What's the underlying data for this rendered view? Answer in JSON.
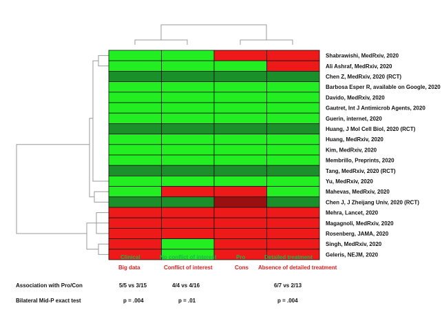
{
  "chart_data": {
    "type": "heatmap",
    "rows": [
      {
        "label": "Shabrawishi, MedRxiv, 2020",
        "cells": [
          "g",
          "g",
          "r",
          "r"
        ]
      },
      {
        "label": "Ali Ashraf, MedRxiv, 2020",
        "cells": [
          "g",
          "g",
          "g",
          "r"
        ]
      },
      {
        "label": "Chen Z, MedRxiv, 2020 (RCT)",
        "cells": [
          "gd",
          "gd",
          "gd",
          "gd"
        ]
      },
      {
        "label": "Barbosa Esper R, available on Google, 2020",
        "cells": [
          "g",
          "g",
          "g",
          "g"
        ]
      },
      {
        "label": "Davido, MedRxiv, 2020",
        "cells": [
          "g",
          "g",
          "g",
          "g"
        ]
      },
      {
        "label": "Gautret, Int J Antimicrob Agents, 2020",
        "cells": [
          "g",
          "g",
          "g",
          "g"
        ]
      },
      {
        "label": "Guerin, internet, 2020",
        "cells": [
          "g",
          "g",
          "g",
          "g"
        ]
      },
      {
        "label": "Huang, J Mol Cell Biol, 2020 (RCT)",
        "cells": [
          "gd",
          "gd",
          "gd",
          "gd"
        ]
      },
      {
        "label": "Huang, MedRxiv, 2020",
        "cells": [
          "g",
          "g",
          "g",
          "g"
        ]
      },
      {
        "label": "Kim, MedRxiv, 2020",
        "cells": [
          "g",
          "g",
          "g",
          "g"
        ]
      },
      {
        "label": "Membrillo, Preprints, 2020",
        "cells": [
          "g",
          "g",
          "g",
          "g"
        ]
      },
      {
        "label": "Tang, MedRxiv, 2020 (RCT)",
        "cells": [
          "gd",
          "gd",
          "gd",
          "gd"
        ]
      },
      {
        "label": "Yu, MedRxiv, 2020",
        "cells": [
          "g",
          "g",
          "g",
          "g"
        ]
      },
      {
        "label": "Mahevas, MedRxiv, 2020",
        "cells": [
          "g",
          "r",
          "r",
          "g"
        ]
      },
      {
        "label": "Chen J, J Zheijang Univ, 2020 (RCT)",
        "cells": [
          "gd",
          "gd",
          "rd",
          "gd"
        ]
      },
      {
        "label": "Mehra, Lancet, 2020",
        "cells": [
          "r",
          "r",
          "r",
          "r"
        ]
      },
      {
        "label": "Magagnoli, MedRxiv, 2020",
        "cells": [
          "r",
          "r",
          "r",
          "r"
        ]
      },
      {
        "label": "Rosenberg, JAMA, 2020",
        "cells": [
          "r",
          "r",
          "r",
          "r"
        ]
      },
      {
        "label": "Singh, MedRxiv, 2020",
        "cells": [
          "r",
          "g",
          "r",
          "r"
        ]
      },
      {
        "label": "Geleris, NEJM, 2020",
        "cells": [
          "r",
          "g",
          "r",
          "r"
        ]
      }
    ],
    "columns": [
      {
        "green_label": "Clinical",
        "red_label": "Big data"
      },
      {
        "green_label": "No conflict of interest",
        "red_label": "Conflict of interest"
      },
      {
        "green_label": "Pro",
        "red_label": "Cons"
      },
      {
        "green_label": "Detailed treatment",
        "red_label": "Absence of detailed treatment"
      }
    ],
    "colors": {
      "g": "#22ee22",
      "gd": "#1a8f2a",
      "r": "#ee1a1a",
      "rd": "#9a1010",
      "grid": "#111111"
    },
    "stats": {
      "association": {
        "label": "Association with Pro/Con",
        "values": [
          "5/5 vs 3/15",
          "4/4 vs 4/16",
          "6/7 vs 2/13"
        ]
      },
      "test": {
        "label": "Bilateral Mid-P exact test",
        "values": [
          "p = .004",
          "p = .01",
          "p = .004"
        ]
      }
    }
  }
}
